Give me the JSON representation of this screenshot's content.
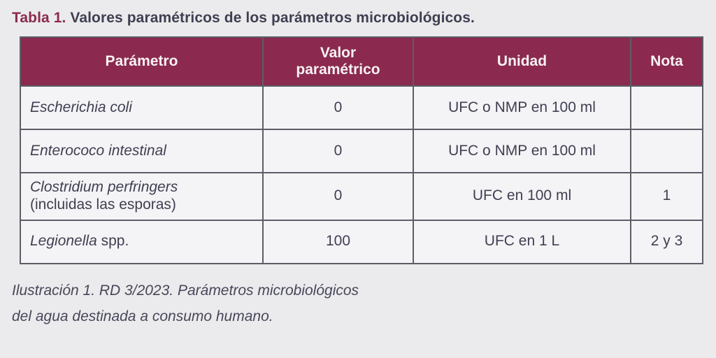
{
  "title": {
    "number": "Tabla 1.",
    "text": " Valores paramétricos de los parámetros microbiológicos."
  },
  "table": {
    "headers": [
      "Parámetro",
      "Valor paramétrico",
      "Unidad",
      "Nota"
    ],
    "rows": [
      {
        "name_italic": "Escherichia coli",
        "name_regular": "",
        "name_on_new_line": false,
        "valor": "0",
        "unidad": "UFC o NMP en 100 ml",
        "nota": ""
      },
      {
        "name_italic": "Enterococo intestinal",
        "name_regular": "",
        "name_on_new_line": false,
        "valor": "0",
        "unidad": "UFC o NMP en 100 ml",
        "nota": ""
      },
      {
        "name_italic": "Clostridium perfringers",
        "name_regular": "(incluidas las esporas)",
        "name_on_new_line": true,
        "valor": "0",
        "unidad": "UFC en 100 ml",
        "nota": "1"
      },
      {
        "name_italic": "Legionella",
        "name_regular": "spp.",
        "name_on_new_line": false,
        "valor": "100",
        "unidad": "UFC en 1 L",
        "nota": "2 y 3"
      }
    ]
  },
  "caption": {
    "line1": "Ilustración 1. RD 3/2023. Parámetros microbiológicos",
    "line2": "del agua destinada a consumo humano."
  },
  "colors": {
    "header_bg": "#8B2A4E",
    "header_text": "#F7F2F3",
    "body_text": "#3F3F52",
    "border": "#5D5D68",
    "cell_bg": "#F4F4F6",
    "page_bg": "#EBEBED",
    "title_number": "#8B2A4E"
  }
}
